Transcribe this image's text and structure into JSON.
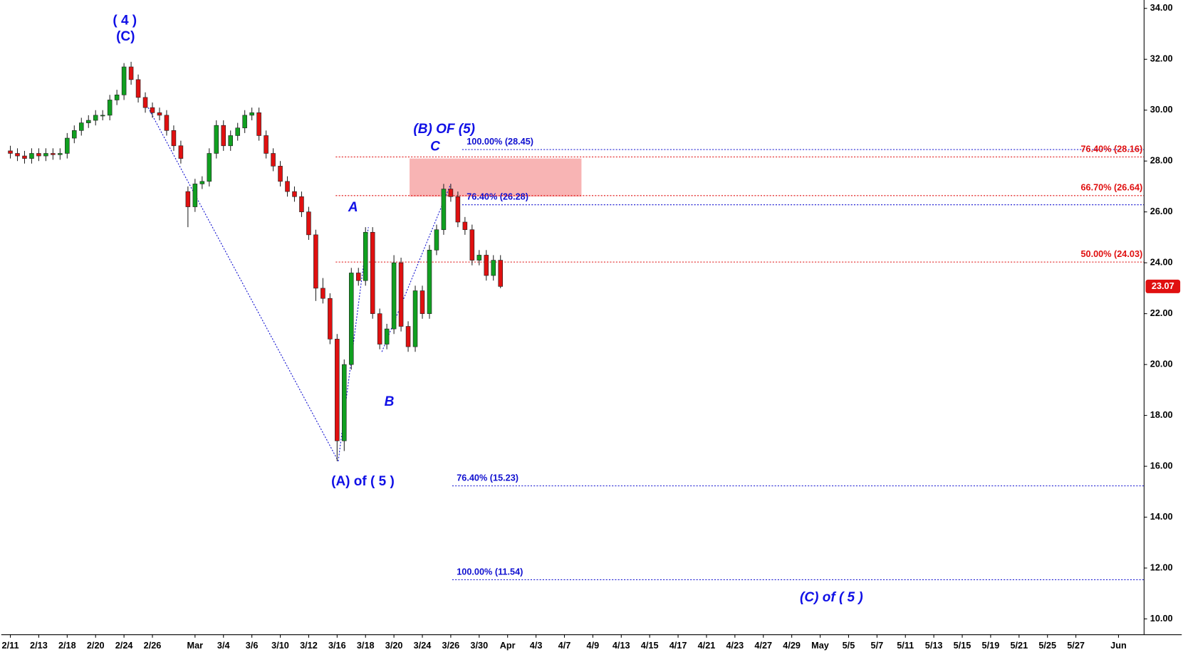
{
  "chart_data": {
    "type": "candlestick",
    "xlim": [
      -0.64,
      79.8
    ],
    "ylim": [
      9.38,
      34.33
    ],
    "yticks": [
      {
        "value": 34,
        "label": "34.00"
      },
      {
        "value": 32,
        "label": "32.00"
      },
      {
        "value": 30,
        "label": "30.00"
      },
      {
        "value": 28,
        "label": "28.00"
      },
      {
        "value": 26,
        "label": "26.00"
      },
      {
        "value": 24,
        "label": "24.00"
      },
      {
        "value": 22,
        "label": "22.00"
      },
      {
        "value": 20,
        "label": "20.00"
      },
      {
        "value": 18,
        "label": "18.00"
      },
      {
        "value": 16,
        "label": "16.00"
      },
      {
        "value": 14,
        "label": "14.00"
      },
      {
        "value": 12,
        "label": "12.00"
      },
      {
        "value": 10,
        "label": "10.00"
      }
    ],
    "xticks": [
      {
        "value": 0,
        "label": "2/11"
      },
      {
        "value": 2,
        "label": "2/13"
      },
      {
        "value": 4,
        "label": "2/18"
      },
      {
        "value": 6,
        "label": "2/20"
      },
      {
        "value": 8,
        "label": "2/24"
      },
      {
        "value": 10,
        "label": "2/26"
      },
      {
        "value": 13,
        "label": "Mar"
      },
      {
        "value": 15,
        "label": "3/4"
      },
      {
        "value": 17,
        "label": "3/6"
      },
      {
        "value": 19,
        "label": "3/10"
      },
      {
        "value": 21,
        "label": "3/12"
      },
      {
        "value": 23,
        "label": "3/16"
      },
      {
        "value": 25,
        "label": "3/18"
      },
      {
        "value": 27,
        "label": "3/20"
      },
      {
        "value": 29,
        "label": "3/24"
      },
      {
        "value": 31,
        "label": "3/26"
      },
      {
        "value": 33,
        "label": "3/30"
      },
      {
        "value": 35,
        "label": "Apr"
      },
      {
        "value": 37,
        "label": "4/3"
      },
      {
        "value": 39,
        "label": "4/7"
      },
      {
        "value": 41,
        "label": "4/9"
      },
      {
        "value": 43,
        "label": "4/13"
      },
      {
        "value": 45,
        "label": "4/15"
      },
      {
        "value": 47,
        "label": "4/17"
      },
      {
        "value": 49,
        "label": "4/21"
      },
      {
        "value": 51,
        "label": "4/23"
      },
      {
        "value": 53,
        "label": "4/27"
      },
      {
        "value": 55,
        "label": "4/29"
      },
      {
        "value": 57,
        "label": "May"
      },
      {
        "value": 59,
        "label": "5/5"
      },
      {
        "value": 61,
        "label": "5/7"
      },
      {
        "value": 63,
        "label": "5/11"
      },
      {
        "value": 65,
        "label": "5/13"
      },
      {
        "value": 67,
        "label": "5/15"
      },
      {
        "value": 69,
        "label": "5/19"
      },
      {
        "value": 71,
        "label": "5/21"
      },
      {
        "value": 73,
        "label": "5/25"
      },
      {
        "value": 75,
        "label": "5/27"
      },
      {
        "value": 78,
        "label": "Jun"
      }
    ],
    "up_color": "#10a020",
    "down_color": "#e01010",
    "x": [
      0,
      0.5,
      1,
      1.5,
      2,
      2.5,
      3,
      3.5,
      4,
      4.5,
      5,
      5.5,
      6,
      6.5,
      7,
      7.5,
      8,
      8.5,
      9,
      9.5,
      10,
      10.5,
      11,
      11.5,
      12,
      12.5,
      13,
      13.5,
      14,
      14.5,
      15,
      15.5,
      16,
      16.5,
      17,
      17.5,
      18,
      18.5,
      19,
      19.5,
      20,
      20.5,
      21,
      21.5,
      22,
      22.5,
      23,
      23.5,
      24,
      24.5,
      25,
      25.5,
      26,
      26.5,
      27,
      27.5,
      28,
      28.5,
      29,
      29.5,
      30,
      30.5,
      31,
      31.5,
      32,
      32.5,
      33,
      33.5,
      34,
      34.5
    ],
    "open": [
      28.4,
      28.3,
      28.2,
      28.1,
      28.3,
      28.2,
      28.3,
      28.25,
      28.3,
      28.9,
      29.2,
      29.5,
      29.6,
      29.8,
      29.8,
      30.4,
      30.6,
      31.7,
      31.2,
      30.5,
      30.1,
      29.9,
      29.8,
      29.2,
      28.6,
      26.8,
      26.2,
      27.1,
      27.2,
      28.3,
      29.4,
      28.6,
      29.0,
      29.3,
      29.8,
      29.9,
      29.0,
      28.3,
      27.8,
      27.2,
      26.8,
      26.6,
      26.0,
      25.1,
      23.0,
      22.6,
      21.0,
      17.0,
      20.0,
      23.6,
      23.3,
      25.2,
      22.0,
      20.8,
      21.4,
      24.0,
      21.5,
      20.7,
      22.9,
      22.0,
      24.5,
      25.3,
      26.9,
      26.6,
      25.6,
      25.3,
      24.1,
      24.3,
      23.5,
      24.1
    ],
    "high": [
      28.6,
      28.5,
      28.4,
      28.5,
      28.5,
      28.5,
      28.5,
      28.5,
      29.1,
      29.4,
      29.7,
      29.8,
      30.0,
      30.0,
      30.6,
      30.8,
      31.85,
      31.9,
      31.4,
      30.7,
      30.3,
      30.1,
      30.0,
      29.4,
      28.8,
      27.0,
      27.3,
      27.4,
      28.5,
      29.6,
      29.6,
      29.2,
      29.5,
      30.0,
      30.1,
      30.1,
      29.2,
      28.5,
      28.0,
      27.4,
      27.0,
      26.8,
      26.2,
      25.3,
      23.4,
      22.8,
      21.2,
      20.2,
      23.8,
      23.8,
      25.4,
      25.4,
      22.2,
      21.6,
      24.3,
      24.2,
      21.7,
      23.1,
      23.1,
      24.7,
      25.5,
      27.1,
      27.1,
      26.8,
      25.8,
      25.5,
      24.5,
      24.5,
      24.3,
      24.3
    ],
    "low": [
      28.1,
      28.0,
      27.9,
      27.9,
      28.0,
      28.0,
      28.05,
      28.05,
      28.1,
      28.7,
      29.0,
      29.3,
      29.4,
      29.6,
      29.6,
      30.2,
      30.4,
      31.0,
      30.3,
      29.9,
      29.7,
      29.6,
      29.0,
      28.4,
      27.9,
      25.4,
      26.0,
      26.9,
      27.0,
      28.1,
      28.4,
      28.4,
      28.8,
      29.1,
      29.6,
      28.8,
      28.1,
      27.6,
      27.0,
      26.6,
      26.4,
      25.8,
      24.9,
      22.5,
      22.4,
      20.8,
      16.2,
      16.6,
      19.8,
      23.1,
      23.1,
      21.8,
      20.6,
      20.6,
      21.2,
      21.3,
      20.5,
      20.5,
      21.8,
      21.8,
      24.3,
      25.1,
      26.4,
      25.4,
      25.1,
      23.9,
      23.9,
      23.3,
      23.3,
      23.0
    ],
    "close": [
      28.3,
      28.2,
      28.1,
      28.3,
      28.2,
      28.3,
      28.25,
      28.3,
      28.9,
      29.2,
      29.5,
      29.6,
      29.8,
      29.8,
      30.4,
      30.6,
      31.7,
      31.2,
      30.5,
      30.1,
      29.9,
      29.8,
      29.2,
      28.6,
      28.1,
      26.2,
      27.1,
      27.2,
      28.3,
      29.4,
      28.6,
      29.0,
      29.3,
      29.8,
      29.9,
      29.0,
      28.3,
      27.8,
      27.2,
      26.8,
      26.6,
      26.0,
      25.1,
      23.0,
      22.6,
      21.0,
      17.0,
      20.0,
      23.6,
      23.3,
      25.2,
      22.0,
      20.8,
      21.4,
      24.0,
      21.5,
      20.7,
      22.9,
      22.0,
      24.5,
      25.3,
      26.9,
      26.6,
      25.6,
      25.3,
      24.1,
      24.3,
      23.5,
      24.1,
      23.07
    ],
    "levels": [
      {
        "value": 28.45,
        "label": "100.00% (28.45)",
        "color": "#1010d0",
        "x_start": 31.8
      },
      {
        "value": 26.28,
        "label": "76.40% (26.28)",
        "color": "#1010d0",
        "x_start": 31.8
      },
      {
        "value": 15.23,
        "label": "76.40% (15.23)",
        "color": "#1010d0",
        "x_start": 31.1
      },
      {
        "value": 11.54,
        "label": "100.00% (11.54)",
        "color": "#1010d0",
        "x_start": 31.1
      },
      {
        "value": 28.16,
        "label": "76.40% (28.16)",
        "color": "#e01010",
        "x_start": 22.9
      },
      {
        "value": 26.64,
        "label": "66.70% (26.64)",
        "color": "#e01010",
        "x_start": 22.9
      },
      {
        "value": 24.03,
        "label": "50.00% (24.03)",
        "color": "#e01010",
        "x_start": 22.9
      }
    ],
    "zone": {
      "x": [
        28.1,
        40.2
      ],
      "y": [
        26.6,
        28.1
      ],
      "color": "#f8b4b4"
    },
    "wave_lines": [
      {
        "x": [
          9.7,
          23.08
        ],
        "y": [
          30.1,
          16.2
        ]
      },
      {
        "x": [
          23.08,
          25.2
        ],
        "y": [
          16.2,
          25.4
        ]
      },
      {
        "x": [
          26.15,
          31.0
        ],
        "y": [
          20.5,
          27.1
        ]
      }
    ],
    "annotations": [
      "( 4 )",
      "(C)",
      "(B) OF (5)",
      "C",
      "A",
      "B",
      "(A) of ( 5 )",
      "(C) of ( 5 )"
    ]
  }
}
